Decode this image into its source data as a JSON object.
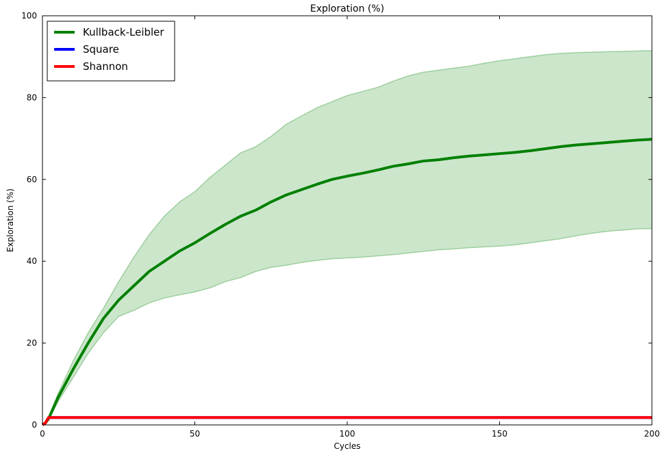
{
  "chart_data": {
    "type": "line",
    "title": "Exploration (%)",
    "xlabel": "Cycles",
    "ylabel": "Exploration (%)",
    "xlim": [
      0,
      200
    ],
    "ylim": [
      0,
      100
    ],
    "xticks": [
      "0",
      "50",
      "100",
      "150",
      "200"
    ],
    "yticks": [
      "0",
      "20",
      "40",
      "60",
      "80",
      "100"
    ],
    "grid": false,
    "legend_position": "top-left",
    "series": [
      {
        "name": "Kullback-Leibler",
        "color": "#008000",
        "x": [
          0,
          1,
          2,
          5,
          10,
          15,
          20,
          25,
          30,
          35,
          40,
          45,
          50,
          55,
          60,
          65,
          70,
          75,
          80,
          85,
          90,
          95,
          100,
          105,
          110,
          115,
          120,
          125,
          130,
          135,
          140,
          145,
          150,
          155,
          160,
          165,
          170,
          175,
          180,
          185,
          190,
          195,
          200
        ],
        "values": [
          0,
          0.5,
          1.5,
          6.5,
          13.5,
          20.0,
          26.0,
          30.5,
          34.0,
          37.5,
          40.0,
          42.5,
          44.5,
          46.8,
          49.0,
          51.0,
          52.5,
          54.5,
          56.2,
          57.5,
          58.8,
          60.0,
          60.8,
          61.5,
          62.3,
          63.2,
          63.8,
          64.5,
          64.8,
          65.3,
          65.7,
          66.0,
          66.3,
          66.6,
          67.0,
          67.5,
          68.0,
          68.4,
          68.7,
          69.0,
          69.3,
          69.6,
          69.8
        ],
        "band_upper": [
          0,
          0.5,
          1.8,
          7.5,
          15.5,
          22.5,
          28.5,
          35.0,
          41.0,
          46.5,
          51.0,
          54.5,
          57.0,
          60.5,
          63.5,
          66.5,
          68.0,
          70.5,
          73.5,
          75.5,
          77.5,
          79.0,
          80.5,
          81.5,
          82.5,
          84.0,
          85.3,
          86.2,
          86.7,
          87.2,
          87.7,
          88.4,
          89.0,
          89.5,
          90.0,
          90.5,
          90.8,
          91.0,
          91.1,
          91.2,
          91.3,
          91.4,
          91.5
        ],
        "band_lower": [
          0,
          0.5,
          1.2,
          5.5,
          11.5,
          17.5,
          22.5,
          26.5,
          28.0,
          29.8,
          31.0,
          31.8,
          32.5,
          33.5,
          35.0,
          36.0,
          37.5,
          38.5,
          39.0,
          39.7,
          40.2,
          40.6,
          40.8,
          41.0,
          41.3,
          41.6,
          42.0,
          42.4,
          42.8,
          43.0,
          43.3,
          43.5,
          43.7,
          44.0,
          44.5,
          45.0,
          45.5,
          46.2,
          46.8,
          47.3,
          47.6,
          47.9,
          48.0
        ]
      },
      {
        "name": "Square",
        "color": "#0000ff",
        "x": [
          0,
          1,
          2,
          200
        ],
        "values": [
          0,
          0.5,
          1.8,
          1.8
        ]
      },
      {
        "name": "Shannon",
        "color": "#ff0000",
        "x": [
          0,
          1,
          2,
          200
        ],
        "values": [
          0,
          0.5,
          1.8,
          1.8
        ]
      }
    ]
  }
}
